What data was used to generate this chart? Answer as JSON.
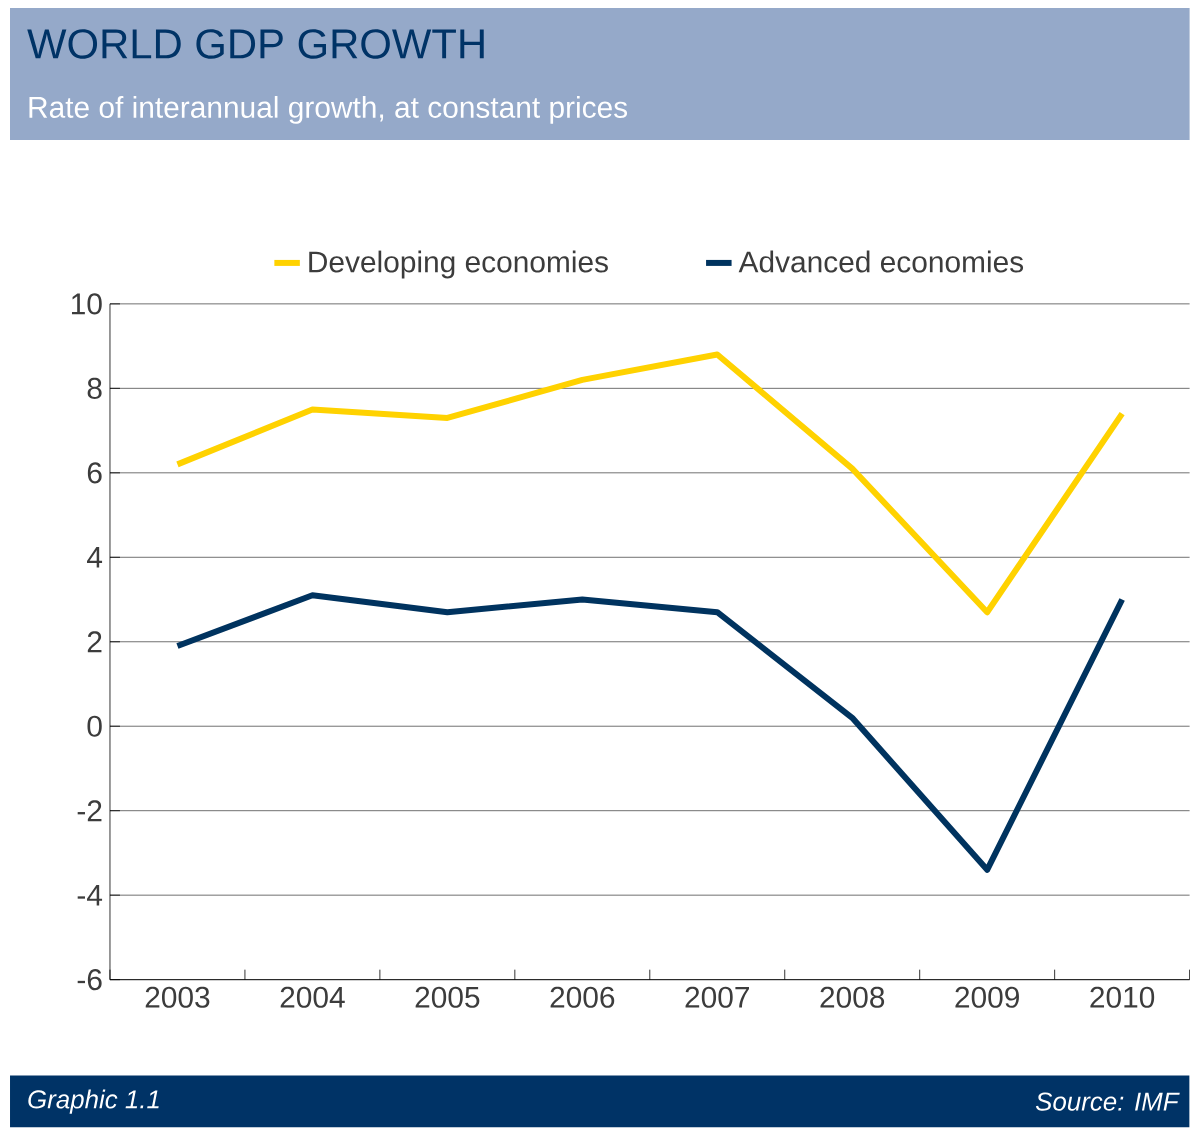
{
  "chart_data": {
    "type": "line",
    "title": "WORLD GDP GROWTH",
    "subtitle": "Rate of interannual growth, at constant prices",
    "categories": [
      "2003",
      "2004",
      "2005",
      "2006",
      "2007",
      "2008",
      "2009",
      "2010"
    ],
    "series": [
      {
        "name": "Developing economies",
        "color": "#ffd200",
        "values": [
          6.2,
          7.5,
          7.3,
          8.2,
          8.8,
          6.1,
          2.7,
          7.4
        ]
      },
      {
        "name": "Advanced economies",
        "color": "#00335f",
        "values": [
          1.9,
          3.1,
          2.7,
          3.0,
          2.7,
          0.2,
          -3.4,
          3.0
        ]
      }
    ],
    "ylim": [
      -6,
      10
    ],
    "yticks": [
      -6,
      -4,
      -2,
      0,
      2,
      4,
      6,
      8,
      10
    ],
    "grid": "y",
    "legend": "top",
    "line_style": "solid",
    "marker": "none",
    "annotations": [
      "Graphic 1.1",
      "Source: IMF"
    ]
  }
}
